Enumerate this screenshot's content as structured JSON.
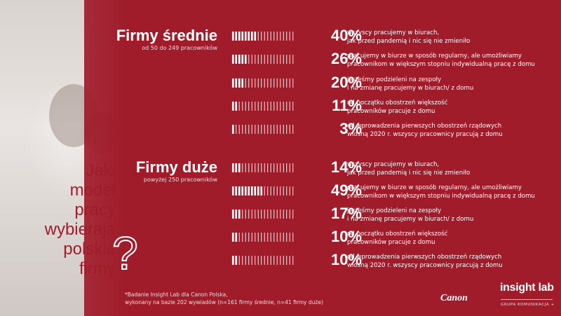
{
  "question": {
    "words": [
      "Jaki",
      "model",
      "pracy",
      "wybierają",
      "polskie",
      "firmy"
    ],
    "mark": "?"
  },
  "groups": [
    {
      "title": "Firmy średnie",
      "subtitle": "od 50 do 249 pracowników",
      "rows": [
        {
          "value": 40,
          "label": "40%",
          "lines": [
            "wszyscy pracujemy w biurach,",
            "jak przed pandemią i nic się nie zmieniło"
          ]
        },
        {
          "value": 26,
          "label": "26%",
          "lines": [
            "pracujemy w biurze w sposób regularny, ale umożliwiamy",
            "pracownikom w większym stopniu indywidualną pracę z domu"
          ]
        },
        {
          "value": 20,
          "label": "20%",
          "lines": [
            "jesteśmy podzieleni na zespoły",
            "i na zmianę pracujemy w biurach/ z domu"
          ]
        },
        {
          "value": 11,
          "label": "11%",
          "lines": [
            "od początku obostrzeń większość",
            "pracowników pracuje z domu"
          ]
        },
        {
          "value": 3,
          "label": "3%",
          "lines": [
            "od wprowadzenia pierwszych obostrzeń rządowych",
            "wiosną 2020 r. wszyscy pracownicy pracują z domu"
          ]
        }
      ]
    },
    {
      "title": "Firmy duże",
      "subtitle": "powyżej 250 pracowników",
      "rows": [
        {
          "value": 14,
          "label": "14%",
          "lines": [
            "wszyscy pracujemy w biurach,",
            "jak przed pandemią i nic się nie zmieniło"
          ]
        },
        {
          "value": 49,
          "label": "49%",
          "lines": [
            "pracujemy w biurze w sposób regularny, ale umożliwiamy",
            "pracownikom w większym stopniu indywidualną pracę z domu"
          ]
        },
        {
          "value": 17,
          "label": "17%",
          "lines": [
            "jesteśmy podzieleni na zespoły",
            "i na zmianę pracujemy w biurach/ z domu"
          ]
        },
        {
          "value": 10,
          "label": "10%",
          "lines": [
            "od początku obostrzeń większość",
            "pracowników pracuje z domu"
          ]
        },
        {
          "value": 10,
          "label": "10%",
          "lines": [
            "od wprowadzenia pierwszych obostrzeń rządowych",
            "wiosną 2020 r. wszyscy pracownicy pracują z domu"
          ]
        }
      ]
    }
  ],
  "footnote": [
    "*Badanie Insight Lab dla Canon Polska,",
    "wykonany na bazie 202 wywiadów (n=161 firmy średnie, n=41 firmy duże)"
  ],
  "logos": {
    "canon": "Canon",
    "insight": "insight lab",
    "grupa": "GRUPA KOMUNIKACJA +"
  },
  "colors": {
    "background": "#a01c2b",
    "bar_filled": "#ffffff",
    "bar_empty": "#ffffff"
  },
  "chart_data": [
    {
      "type": "bar",
      "title": "Firmy średnie",
      "subtitle": "od 50 do 249 pracowników",
      "categories": [
        "wszyscy pracujemy w biurach, jak przed pandemią i nic się nie zmieniło",
        "pracujemy w biurze w sposób regularny, ale umożliwiamy pracownikom w większym stopniu indywidualną pracę z domu",
        "jesteśmy podzieleni na zespoły i na zmianę pracujemy w biurach/ z domu",
        "od początku obostrzeń większość pracowników pracuje z domu",
        "od wprowadzenia pierwszych obostrzeń rządowych wiosną 2020 r. wszyscy pracownicy pracują z domu"
      ],
      "values": [
        40,
        26,
        20,
        11,
        3
      ],
      "ylim": [
        0,
        100
      ]
    },
    {
      "type": "bar",
      "title": "Firmy duże",
      "subtitle": "powyżej 250 pracowników",
      "categories": [
        "wszyscy pracujemy w biurach, jak przed pandemią i nic się nie zmieniło",
        "pracujemy w biurze w sposób regularny, ale umożliwiamy pracownikom w większym stopniu indywidualną pracę z domu",
        "jesteśmy podzieleni na zespoły i na zmianę pracujemy w biurach/ z domu",
        "od początku obostrzeń większość pracowników pracuje z domu",
        "od wprowadzenia pierwszych obostrzeń rządowych wiosną 2020 r. wszyscy pracownicy pracują z domu"
      ],
      "values": [
        14,
        49,
        17,
        10,
        10
      ],
      "ylim": [
        0,
        100
      ]
    }
  ]
}
